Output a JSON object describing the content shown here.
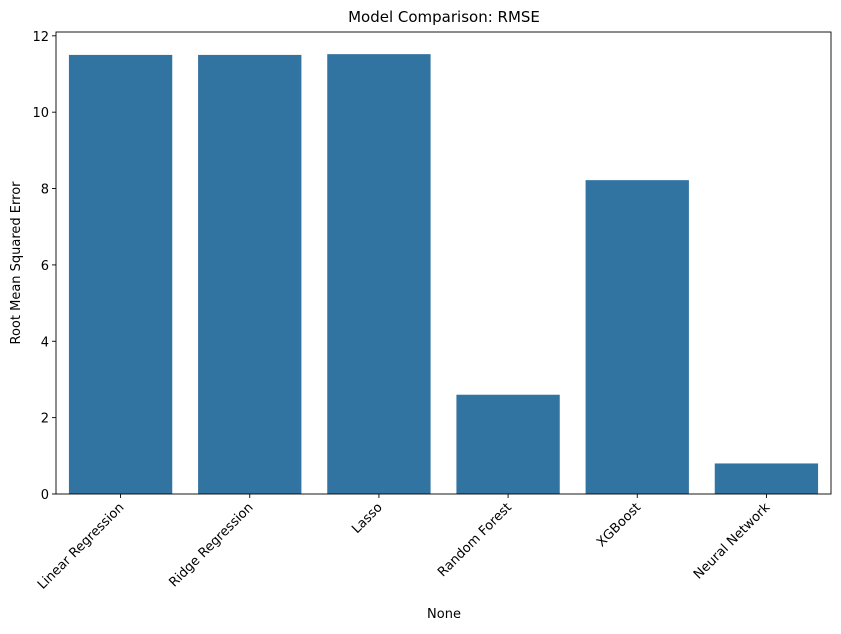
{
  "chart_data": {
    "type": "bar",
    "title": "Model Comparison: RMSE",
    "xlabel": "None",
    "ylabel": "Root Mean Squared Error",
    "categories": [
      "Linear Regression",
      "Ridge Regression",
      "Lasso",
      "Random Forest",
      "XGBoost",
      "Neural Network"
    ],
    "values": [
      11.5,
      11.5,
      11.52,
      2.6,
      8.22,
      0.8
    ],
    "ylim": [
      0,
      12.1
    ],
    "yticks": [
      0,
      2,
      4,
      6,
      8,
      10,
      12
    ],
    "grid": false,
    "bar_color": "#3274a1",
    "x_tick_rotation": 45
  }
}
